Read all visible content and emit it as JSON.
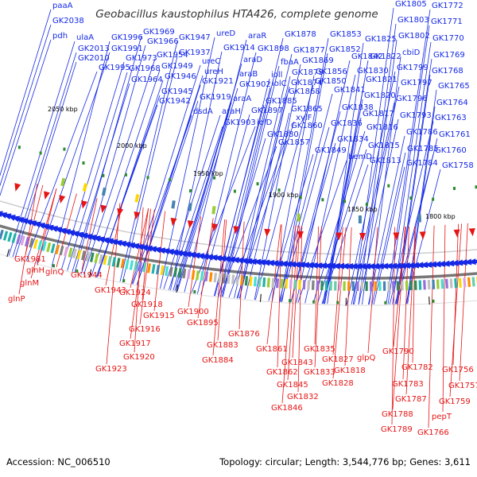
{
  "title": "Geobacillus kaustophilus HTA426, complete genome",
  "colors": {
    "forward": "#1428e6",
    "reverse": "#e61414",
    "backbone": "#777777"
  },
  "kbp_ticks": [
    "2050 kbp",
    "2000 kbp",
    "1950 kbp",
    "1900 kbp",
    "1850 kbp",
    "1800 kbp"
  ],
  "forward_labels": [
    "paaA",
    "GK2038",
    "pdh",
    "ulaA",
    "GK2013",
    "GK2010",
    "GK1996",
    "GK1991",
    "GK1995",
    "GK1969",
    "GK1966",
    "GK1973",
    "GK1968",
    "GK1964",
    "GK1954",
    "GK1949",
    "GK1946",
    "GK1945",
    "GK1942",
    "GK1947",
    "GK1937",
    "ureC",
    "ureH",
    "GK1921",
    "GK1919",
    "dsdA",
    "ureD",
    "GK1914",
    "araD",
    "araB",
    "GK1902",
    "araA",
    "araH",
    "GK1903",
    "GK1897",
    "iolD",
    "araR",
    "GK1898",
    "ioll",
    "iolC",
    "GK1885",
    "GK1880",
    "GK1878",
    "GK1877",
    "fbaA",
    "GK1879",
    "GK1874",
    "GK1868",
    "GK1865",
    "GK1860",
    "xylF",
    "GK1857",
    "GK1853",
    "GK1852",
    "GK1869",
    "GK1856",
    "GK1850",
    "GK1841",
    "GK1838",
    "GK1836",
    "GK1834",
    "GK1849",
    "GK1825",
    "GK1842",
    "GK1830",
    "hemD",
    "GK1822",
    "GK1821",
    "GK1820",
    "GK1817",
    "GK1816",
    "GK1815",
    "GK1813",
    "GK1805",
    "GK1803",
    "GK1802",
    "cbiD",
    "GK1799",
    "GK1797",
    "GK1796",
    "GK1793",
    "GK1786",
    "GK1785",
    "GK1784",
    "GK1772",
    "GK1771",
    "GK1770",
    "GK1769",
    "GK1768",
    "GK1765",
    "GK1764",
    "GK1763",
    "GK1761",
    "GK1760",
    "GK1758"
  ],
  "reverse_labels": [
    "GK1981",
    "glnH",
    "glnQ",
    "glnM",
    "glnP",
    "GK1944",
    "GK1943",
    "GK1924",
    "GK1918",
    "GK1915",
    "GK1916",
    "GK1917",
    "GK1920",
    "GK1923",
    "GK1900",
    "GK1895",
    "GK1876",
    "GK1883",
    "GK1884",
    "GK1861",
    "GK1862",
    "GK1843",
    "GK1845",
    "GK1846",
    "GK1835",
    "GK1833",
    "GK1827",
    "GK1828",
    "GK1832",
    "GK1818",
    "glpQ",
    "GK1790",
    "GK1782",
    "GK1783",
    "GK1787",
    "GK1788",
    "GK1789",
    "GK1756",
    "GK1757",
    "GK1759",
    "pepT",
    "GK1766"
  ],
  "footer": {
    "accession": "Accession: NC_006510",
    "topology": "Topology: circular; Length: 3,544,776 bp; Genes: 3,611"
  }
}
